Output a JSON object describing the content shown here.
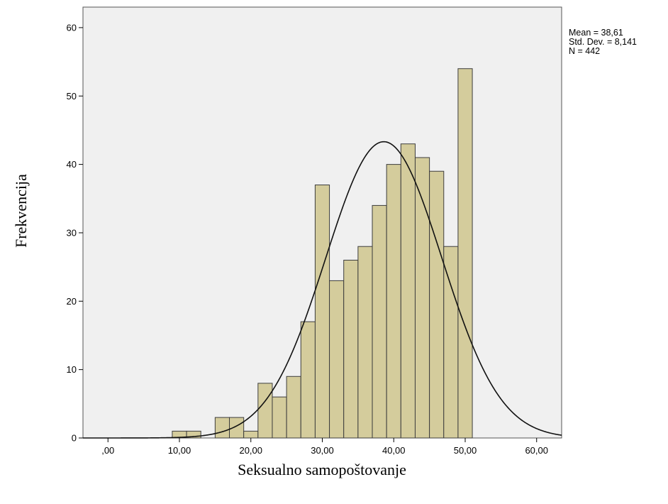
{
  "chart_data": {
    "type": "bar",
    "subtype": "histogram-with-normal-curve",
    "xlabel": "Seksualno samopoštovanje",
    "ylabel": "Frekvencija",
    "xlim": [
      -3.5,
      63.5
    ],
    "ylim": [
      0,
      63
    ],
    "x_ticks": [
      {
        "value": 0,
        "label": ",00"
      },
      {
        "value": 10,
        "label": "10,00"
      },
      {
        "value": 20,
        "label": "20,00"
      },
      {
        "value": 30,
        "label": "30,00"
      },
      {
        "value": 40,
        "label": "40,00"
      },
      {
        "value": 50,
        "label": "50,00"
      },
      {
        "value": 60,
        "label": "60,00"
      }
    ],
    "y_ticks": [
      {
        "value": 0,
        "label": "0"
      },
      {
        "value": 10,
        "label": "10"
      },
      {
        "value": 20,
        "label": "20"
      },
      {
        "value": 30,
        "label": "30"
      },
      {
        "value": 40,
        "label": "40"
      },
      {
        "value": 50,
        "label": "50"
      },
      {
        "value": 60,
        "label": "60"
      }
    ],
    "bin_width": 2,
    "bins": [
      {
        "start": 9,
        "end": 11,
        "count": 1
      },
      {
        "start": 11,
        "end": 13,
        "count": 1
      },
      {
        "start": 13,
        "end": 15,
        "count": 0
      },
      {
        "start": 15,
        "end": 17,
        "count": 3
      },
      {
        "start": 17,
        "end": 19,
        "count": 3
      },
      {
        "start": 19,
        "end": 21,
        "count": 1
      },
      {
        "start": 21,
        "end": 23,
        "count": 8
      },
      {
        "start": 23,
        "end": 25,
        "count": 6
      },
      {
        "start": 25,
        "end": 27,
        "count": 9
      },
      {
        "start": 27,
        "end": 29,
        "count": 17
      },
      {
        "start": 29,
        "end": 31,
        "count": 37
      },
      {
        "start": 31,
        "end": 33,
        "count": 23
      },
      {
        "start": 33,
        "end": 35,
        "count": 26
      },
      {
        "start": 35,
        "end": 37,
        "count": 28
      },
      {
        "start": 37,
        "end": 39,
        "count": 34
      },
      {
        "start": 39,
        "end": 41,
        "count": 40
      },
      {
        "start": 41,
        "end": 43,
        "count": 43
      },
      {
        "start": 43,
        "end": 45,
        "count": 41
      },
      {
        "start": 45,
        "end": 47,
        "count": 39
      },
      {
        "start": 47,
        "end": 49,
        "count": 28
      },
      {
        "start": 49,
        "end": 51,
        "count": 54
      }
    ],
    "normal_curve": {
      "mean": 38.61,
      "sd": 8.141,
      "n": 442
    },
    "stats_text": [
      "Mean = 38,61",
      "Std. Dev. = 8,141",
      "N = 442"
    ],
    "colors": {
      "bar_fill": "#d4cc9c",
      "bar_stroke": "#3d3d3d",
      "plot_background": "#f0f0f0",
      "curve": "#111111"
    },
    "grid": false,
    "legend": "none"
  }
}
